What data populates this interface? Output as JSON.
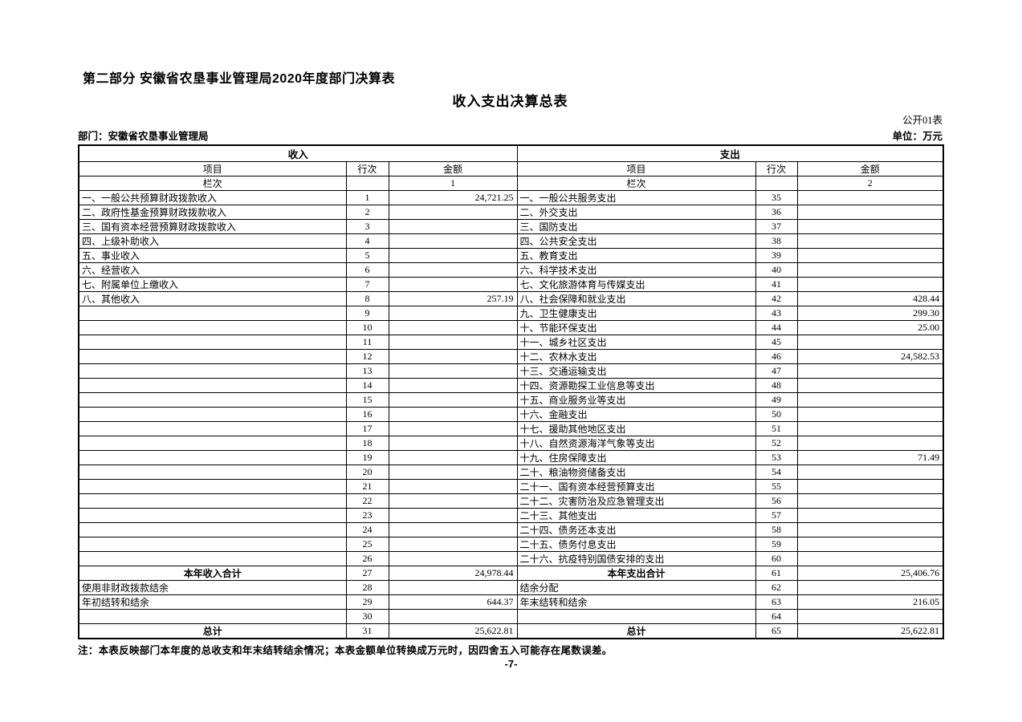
{
  "page": {
    "part_title": "第二部分 安徽省农垦事业管理局2020年度部门决算表",
    "table_title": "收入支出决算总表",
    "form_code": "公开01表",
    "department_label": "部门：安徽省农垦事业管理局",
    "unit_label": "单位：万元",
    "note": "注：本表反映部门本年度的总收支和年末结转结余情况；本表金额单位转换成万元时，因四舍五入可能存在尾数误差。",
    "page_number": "-7-"
  },
  "table": {
    "income_header": "收入",
    "expense_header": "支出",
    "col_item": "项目",
    "col_row": "行次",
    "col_amount": "金额",
    "col_index_label": "栏次",
    "income_col_index": "1",
    "expense_col_index": "2",
    "rows": [
      {
        "i_item": "一、一般公共预算财政拨款收入",
        "i_row": "1",
        "i_amt": "24,721.25",
        "e_item": "一、一般公共服务支出",
        "e_row": "35",
        "e_amt": "",
        "total": false
      },
      {
        "i_item": "二、政府性基金预算财政拨款收入",
        "i_row": "2",
        "i_amt": "",
        "e_item": "二、外交支出",
        "e_row": "36",
        "e_amt": "",
        "total": false
      },
      {
        "i_item": "三、国有资本经营预算财政拨款收入",
        "i_row": "3",
        "i_amt": "",
        "e_item": "三、国防支出",
        "e_row": "37",
        "e_amt": "",
        "total": false
      },
      {
        "i_item": "四、上级补助收入",
        "i_row": "4",
        "i_amt": "",
        "e_item": "四、公共安全支出",
        "e_row": "38",
        "e_amt": "",
        "total": false
      },
      {
        "i_item": "五、事业收入",
        "i_row": "5",
        "i_amt": "",
        "e_item": "五、教育支出",
        "e_row": "39",
        "e_amt": "",
        "total": false
      },
      {
        "i_item": "六、经营收入",
        "i_row": "6",
        "i_amt": "",
        "e_item": "六、科学技术支出",
        "e_row": "40",
        "e_amt": "",
        "total": false
      },
      {
        "i_item": "七、附属单位上缴收入",
        "i_row": "7",
        "i_amt": "",
        "e_item": "七、文化旅游体育与传媒支出",
        "e_row": "41",
        "e_amt": "",
        "total": false
      },
      {
        "i_item": "八、其他收入",
        "i_row": "8",
        "i_amt": "257.19",
        "e_item": "八、社会保障和就业支出",
        "e_row": "42",
        "e_amt": "428.44",
        "total": false
      },
      {
        "i_item": "",
        "i_row": "9",
        "i_amt": "",
        "e_item": "九、卫生健康支出",
        "e_row": "43",
        "e_amt": "299.30",
        "total": false
      },
      {
        "i_item": "",
        "i_row": "10",
        "i_amt": "",
        "e_item": "十、节能环保支出",
        "e_row": "44",
        "e_amt": "25.00",
        "total": false
      },
      {
        "i_item": "",
        "i_row": "11",
        "i_amt": "",
        "e_item": "十一、城乡社区支出",
        "e_row": "45",
        "e_amt": "",
        "total": false
      },
      {
        "i_item": "",
        "i_row": "12",
        "i_amt": "",
        "e_item": "十二、农林水支出",
        "e_row": "46",
        "e_amt": "24,582.53",
        "total": false
      },
      {
        "i_item": "",
        "i_row": "13",
        "i_amt": "",
        "e_item": "十三、交通运输支出",
        "e_row": "47",
        "e_amt": "",
        "total": false
      },
      {
        "i_item": "",
        "i_row": "14",
        "i_amt": "",
        "e_item": "十四、资源勘探工业信息等支出",
        "e_row": "48",
        "e_amt": "",
        "total": false
      },
      {
        "i_item": "",
        "i_row": "15",
        "i_amt": "",
        "e_item": "十五、商业服务业等支出",
        "e_row": "49",
        "e_amt": "",
        "total": false
      },
      {
        "i_item": "",
        "i_row": "16",
        "i_amt": "",
        "e_item": "十六、金融支出",
        "e_row": "50",
        "e_amt": "",
        "total": false
      },
      {
        "i_item": "",
        "i_row": "17",
        "i_amt": "",
        "e_item": "十七、援助其他地区支出",
        "e_row": "51",
        "e_amt": "",
        "total": false
      },
      {
        "i_item": "",
        "i_row": "18",
        "i_amt": "",
        "e_item": "十八、自然资源海洋气象等支出",
        "e_row": "52",
        "e_amt": "",
        "total": false
      },
      {
        "i_item": "",
        "i_row": "19",
        "i_amt": "",
        "e_item": "十九、住房保障支出",
        "e_row": "53",
        "e_amt": "71.49",
        "total": false
      },
      {
        "i_item": "",
        "i_row": "20",
        "i_amt": "",
        "e_item": "二十、粮油物资储备支出",
        "e_row": "54",
        "e_amt": "",
        "total": false
      },
      {
        "i_item": "",
        "i_row": "21",
        "i_amt": "",
        "e_item": "二十一、国有资本经营预算支出",
        "e_row": "55",
        "e_amt": "",
        "total": false
      },
      {
        "i_item": "",
        "i_row": "22",
        "i_amt": "",
        "e_item": "二十二、灾害防治及应急管理支出",
        "e_row": "56",
        "e_amt": "",
        "total": false
      },
      {
        "i_item": "",
        "i_row": "23",
        "i_amt": "",
        "e_item": "二十三、其他支出",
        "e_row": "57",
        "e_amt": "",
        "total": false
      },
      {
        "i_item": "",
        "i_row": "24",
        "i_amt": "",
        "e_item": "二十四、债务还本支出",
        "e_row": "58",
        "e_amt": "",
        "total": false
      },
      {
        "i_item": "",
        "i_row": "25",
        "i_amt": "",
        "e_item": "二十五、债务付息支出",
        "e_row": "59",
        "e_amt": "",
        "total": false
      },
      {
        "i_item": "",
        "i_row": "26",
        "i_amt": "",
        "e_item": "二十六、抗疫特别国债安排的支出",
        "e_row": "60",
        "e_amt": "",
        "total": false
      },
      {
        "i_item": "本年收入合计",
        "i_row": "27",
        "i_amt": "24,978.44",
        "e_item": "本年支出合计",
        "e_row": "61",
        "e_amt": "25,406.76",
        "total": true
      },
      {
        "i_item": "使用非财政拨款结余",
        "i_row": "28",
        "i_amt": "",
        "e_item": "结余分配",
        "e_row": "62",
        "e_amt": "",
        "total": false
      },
      {
        "i_item": "年初结转和结余",
        "i_row": "29",
        "i_amt": "644.37",
        "e_item": "年末结转和结余",
        "e_row": "63",
        "e_amt": "216.05",
        "total": false
      },
      {
        "i_item": "",
        "i_row": "30",
        "i_amt": "",
        "e_item": "",
        "e_row": "64",
        "e_amt": "",
        "total": false
      },
      {
        "i_item": "总计",
        "i_row": "31",
        "i_amt": "25,622.81",
        "e_item": "总计",
        "e_row": "65",
        "e_amt": "25,622.81",
        "total": true
      }
    ]
  }
}
